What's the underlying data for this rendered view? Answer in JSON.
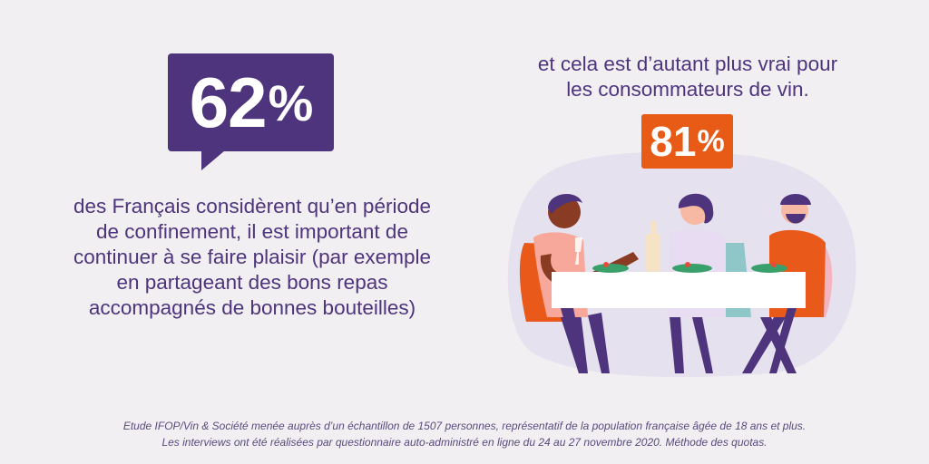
{
  "stat_left": {
    "number": "62",
    "unit": "%"
  },
  "left_text": {
    "line1": "des Français considèrent qu’en période",
    "line2": "de confinement, il est important de",
    "line3": "continuer à se faire plaisir (par exemple",
    "line4": "en partageant des bons repas",
    "line5": "accompagnés de bonnes bouteilles)"
  },
  "right_text": {
    "line1": "et cela est d’autant plus vrai pour",
    "line2": "les consommateurs de vin."
  },
  "stat_right": {
    "number": "81",
    "unit": "%"
  },
  "footnote": {
    "line1": "Etude IFOP/Vin & Société menée auprès d’un échantillon de 1507 personnes, représentatif de la population française âgée de 18 ans et plus.",
    "line2": "Les interviews ont été réalisées par questionnaire auto-administré en ligne du 24 au 27 novembre 2020. Méthode des quotas."
  },
  "colors": {
    "purple": "#4d347c",
    "orange": "#e85b17",
    "background": "#f1eff2"
  },
  "illustration": "dinner-table-scene"
}
